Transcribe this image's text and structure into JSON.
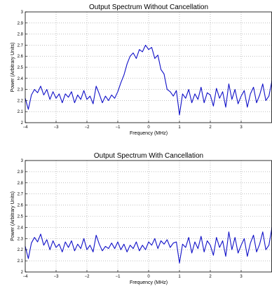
{
  "chart_data": [
    {
      "type": "line",
      "title": "Output Spectrum Without Cancellation",
      "xlabel": "Frequency (MHz)",
      "ylabel": "Power (Arbitrary Units)",
      "xlim": [
        -4,
        4
      ],
      "ylim": [
        2,
        3
      ],
      "xticks": [
        -4,
        -3,
        -2,
        -1,
        0,
        1,
        2,
        3
      ],
      "xtick_labels": [
        "−4",
        "−3",
        "−2",
        "−1",
        "0",
        "1",
        "2",
        "3"
      ],
      "yticks": [
        2,
        2.1,
        2.2,
        2.3,
        2.4,
        2.5,
        2.6,
        2.7,
        2.8,
        2.9,
        3
      ],
      "ytick_labels": [
        "2",
        "2.1",
        "2.2",
        "2.3",
        "2.4",
        "2.5",
        "2.6",
        "2.7",
        "2.8",
        "2.9",
        "3"
      ],
      "grid": true,
      "color": "#1010c8",
      "series": [
        {
          "x": [
            -4.0,
            -3.9,
            -3.8,
            -3.7,
            -3.6,
            -3.5,
            -3.4,
            -3.3,
            -3.2,
            -3.1,
            -3.0,
            -2.9,
            -2.8,
            -2.7,
            -2.6,
            -2.5,
            -2.4,
            -2.3,
            -2.2,
            -2.1,
            -2.0,
            -1.9,
            -1.8,
            -1.7,
            -1.6,
            -1.5,
            -1.4,
            -1.3,
            -1.2,
            -1.1,
            -1.0,
            -0.9,
            -0.8,
            -0.7,
            -0.6,
            -0.5,
            -0.4,
            -0.3,
            -0.2,
            -0.1,
            0.0,
            0.1,
            0.2,
            0.3,
            0.4,
            0.5,
            0.6,
            0.7,
            0.8,
            0.9,
            1.0,
            1.1,
            1.2,
            1.3,
            1.4,
            1.5,
            1.6,
            1.7,
            1.8,
            1.9,
            2.0,
            2.1,
            2.2,
            2.3,
            2.4,
            2.5,
            2.6,
            2.7,
            2.8,
            2.9,
            3.0,
            3.1,
            3.2,
            3.3,
            3.4,
            3.5,
            3.6,
            3.7,
            3.8,
            3.9,
            4.0
          ],
          "y": [
            2.22,
            2.12,
            2.25,
            2.3,
            2.27,
            2.33,
            2.25,
            2.3,
            2.21,
            2.28,
            2.22,
            2.26,
            2.18,
            2.26,
            2.23,
            2.28,
            2.18,
            2.25,
            2.21,
            2.29,
            2.21,
            2.24,
            2.17,
            2.33,
            2.26,
            2.18,
            2.24,
            2.2,
            2.25,
            2.22,
            2.28,
            2.36,
            2.43,
            2.53,
            2.6,
            2.63,
            2.58,
            2.66,
            2.64,
            2.7,
            2.66,
            2.68,
            2.58,
            2.61,
            2.48,
            2.44,
            2.3,
            2.28,
            2.24,
            2.29,
            2.07,
            2.26,
            2.22,
            2.3,
            2.18,
            2.26,
            2.21,
            2.32,
            2.18,
            2.27,
            2.25,
            2.15,
            2.31,
            2.22,
            2.28,
            2.14,
            2.35,
            2.21,
            2.3,
            2.17,
            2.24,
            2.29,
            2.14,
            2.26,
            2.32,
            2.18,
            2.25,
            2.35,
            2.2,
            2.24,
            2.38
          ]
        }
      ]
    },
    {
      "type": "line",
      "title": "Output Spectrum With Cancellation",
      "xlabel": "Frequency (MHz)",
      "ylabel": "Power (Arbitrary Units)",
      "xlim": [
        -4,
        4
      ],
      "ylim": [
        2,
        3
      ],
      "xticks": [
        -4,
        -3,
        -2,
        -1,
        0,
        1,
        2,
        3
      ],
      "xtick_labels": [
        "−4",
        "−3",
        "−2",
        "−1",
        "0",
        "1",
        "2",
        "3"
      ],
      "yticks": [
        2,
        2.1,
        2.2,
        2.3,
        2.4,
        2.5,
        2.6,
        2.7,
        2.8,
        2.9,
        3
      ],
      "ytick_labels": [
        "2",
        "2.1",
        "2.2",
        "2.3",
        "2.4",
        "2.5",
        "2.6",
        "2.7",
        "2.8",
        "2.9",
        "3"
      ],
      "grid": true,
      "color": "#1010c8",
      "series": [
        {
          "x": [
            -4.0,
            -3.9,
            -3.8,
            -3.7,
            -3.6,
            -3.5,
            -3.4,
            -3.3,
            -3.2,
            -3.1,
            -3.0,
            -2.9,
            -2.8,
            -2.7,
            -2.6,
            -2.5,
            -2.4,
            -2.3,
            -2.2,
            -2.1,
            -2.0,
            -1.9,
            -1.8,
            -1.7,
            -1.6,
            -1.5,
            -1.4,
            -1.3,
            -1.2,
            -1.1,
            -1.0,
            -0.9,
            -0.8,
            -0.7,
            -0.6,
            -0.5,
            -0.4,
            -0.3,
            -0.2,
            -0.1,
            0.0,
            0.1,
            0.2,
            0.3,
            0.4,
            0.5,
            0.6,
            0.7,
            0.8,
            0.9,
            1.0,
            1.1,
            1.2,
            1.3,
            1.4,
            1.5,
            1.6,
            1.7,
            1.8,
            1.9,
            2.0,
            2.1,
            2.2,
            2.3,
            2.4,
            2.5,
            2.6,
            2.7,
            2.8,
            2.9,
            3.0,
            3.1,
            3.2,
            3.3,
            3.4,
            3.5,
            3.6,
            3.7,
            3.8,
            3.9,
            4.0
          ],
          "y": [
            2.23,
            2.12,
            2.26,
            2.31,
            2.27,
            2.34,
            2.24,
            2.29,
            2.2,
            2.28,
            2.22,
            2.25,
            2.18,
            2.27,
            2.22,
            2.28,
            2.19,
            2.25,
            2.21,
            2.3,
            2.2,
            2.24,
            2.18,
            2.33,
            2.25,
            2.19,
            2.23,
            2.21,
            2.26,
            2.21,
            2.27,
            2.2,
            2.25,
            2.18,
            2.24,
            2.21,
            2.27,
            2.19,
            2.24,
            2.2,
            2.27,
            2.24,
            2.3,
            2.21,
            2.28,
            2.25,
            2.29,
            2.22,
            2.26,
            2.27,
            2.08,
            2.25,
            2.22,
            2.31,
            2.17,
            2.27,
            2.21,
            2.32,
            2.18,
            2.28,
            2.24,
            2.15,
            2.31,
            2.22,
            2.28,
            2.14,
            2.36,
            2.2,
            2.31,
            2.17,
            2.24,
            2.3,
            2.14,
            2.26,
            2.33,
            2.18,
            2.25,
            2.36,
            2.2,
            2.24,
            2.4
          ]
        }
      ]
    }
  ]
}
